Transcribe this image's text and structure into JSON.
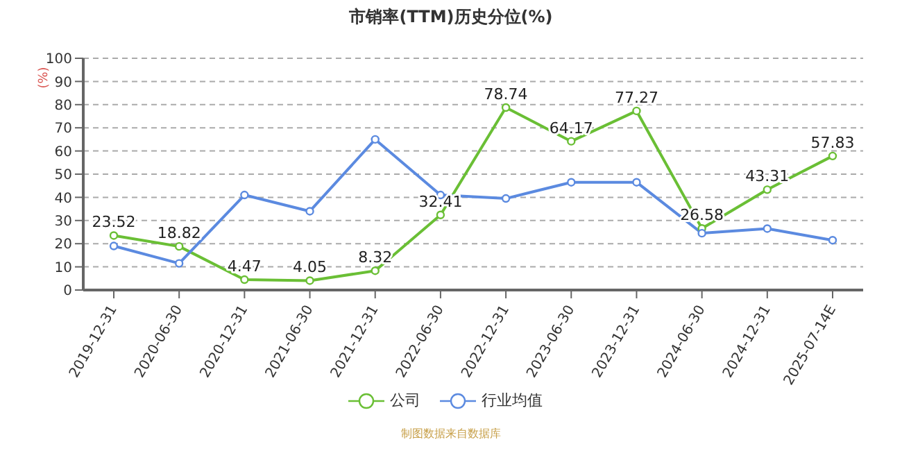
{
  "chart_data": {
    "type": "line",
    "title": "市销率(TTM)历史分位(%)",
    "ylabel": "(%)",
    "categories": [
      "2019-12-31",
      "2020-06-30",
      "2020-12-31",
      "2021-06-30",
      "2021-12-31",
      "2022-06-30",
      "2022-12-31",
      "2023-06-30",
      "2023-12-31",
      "2024-06-30",
      "2024-12-31",
      "2025-07-14E"
    ],
    "series": [
      {
        "name": "公司",
        "color": "#6abf35",
        "values": [
          23.52,
          18.82,
          4.47,
          4.05,
          8.32,
          32.41,
          78.74,
          64.17,
          77.27,
          26.58,
          43.31,
          57.83
        ],
        "value_labels": [
          "23.52",
          "18.82",
          "4.47",
          "4.05",
          "8.32",
          "32.41",
          "78.74",
          "64.17",
          "77.27",
          "26.58",
          "43.31",
          "57.83"
        ]
      },
      {
        "name": "行业均值",
        "color": "#5b8ae0",
        "values": [
          19,
          11.5,
          41,
          34,
          65,
          41,
          39.5,
          46.5,
          46.5,
          24.5,
          26.5,
          21.5
        ]
      }
    ],
    "ylim": [
      0,
      100
    ],
    "yticks": [
      0,
      10,
      20,
      30,
      40,
      50,
      60,
      70,
      80,
      90,
      100
    ],
    "grid": "y",
    "legend": "bottom",
    "marker": "circle",
    "line_style": "solid",
    "annotations": [
      "制图数据来自数据库"
    ]
  }
}
